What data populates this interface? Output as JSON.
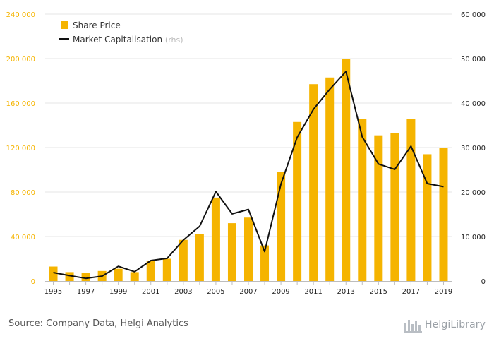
{
  "chart_data": {
    "type": "bar+line",
    "title": "",
    "categories": [
      "1995",
      "1996",
      "1997",
      "1998",
      "1999",
      "2000",
      "2001",
      "2002",
      "2003",
      "2004",
      "2005",
      "2006",
      "2007",
      "2008",
      "2009",
      "2010",
      "2011",
      "2012",
      "2013",
      "2014",
      "2015",
      "2016",
      "2017",
      "2018",
      "2019"
    ],
    "x_tick_labels": [
      "1995",
      "1997",
      "1999",
      "2001",
      "2003",
      "2005",
      "2007",
      "2009",
      "2011",
      "2013",
      "2015",
      "2017",
      "2019"
    ],
    "series": [
      {
        "name": "Share Price",
        "type": "bar",
        "axis": "left",
        "color": "#f5b400",
        "values": [
          13000,
          8000,
          7000,
          9000,
          11000,
          8000,
          18000,
          20000,
          37000,
          42000,
          75000,
          52000,
          57000,
          32000,
          98000,
          143000,
          177000,
          183000,
          200000,
          146000,
          131000,
          133000,
          146000,
          114000,
          120000
        ]
      },
      {
        "name": "Market Capitalisation",
        "name_suffix": "(rhs)",
        "type": "line",
        "axis": "right",
        "color": "#111111",
        "values": [
          1900,
          1200,
          600,
          1100,
          3300,
          2100,
          4600,
          5100,
          9200,
          12300,
          20100,
          15100,
          16100,
          6600,
          21800,
          32300,
          38600,
          43100,
          47100,
          32400,
          26300,
          25100,
          30300,
          21900,
          21200
        ]
      }
    ],
    "y_left": {
      "ylim": [
        0,
        240000
      ],
      "ticks": [
        "0",
        "40 000",
        "80 000",
        "120 000",
        "160 000",
        "200 000",
        "240 000"
      ],
      "tick_values": [
        0,
        40000,
        80000,
        120000,
        160000,
        200000,
        240000
      ]
    },
    "y_right": {
      "ylim": [
        0,
        60000
      ],
      "ticks": [
        "0",
        "10 000",
        "20 000",
        "30 000",
        "40 000",
        "50 000",
        "60 000"
      ],
      "tick_values": [
        0,
        10000,
        20000,
        30000,
        40000,
        50000,
        60000
      ]
    },
    "grid": true,
    "legend_position": "top-left",
    "bar_color": "#f5b400",
    "line_color": "#111111",
    "left_tick_color": "#f5b400"
  },
  "legend": {
    "share_price": "Share Price",
    "market_cap": "Market Capitalisation",
    "market_cap_suffix": "(rhs)"
  },
  "footer": {
    "source": "Source: Company Data, Helgi Analytics",
    "brand": "HelgiLibrary"
  }
}
